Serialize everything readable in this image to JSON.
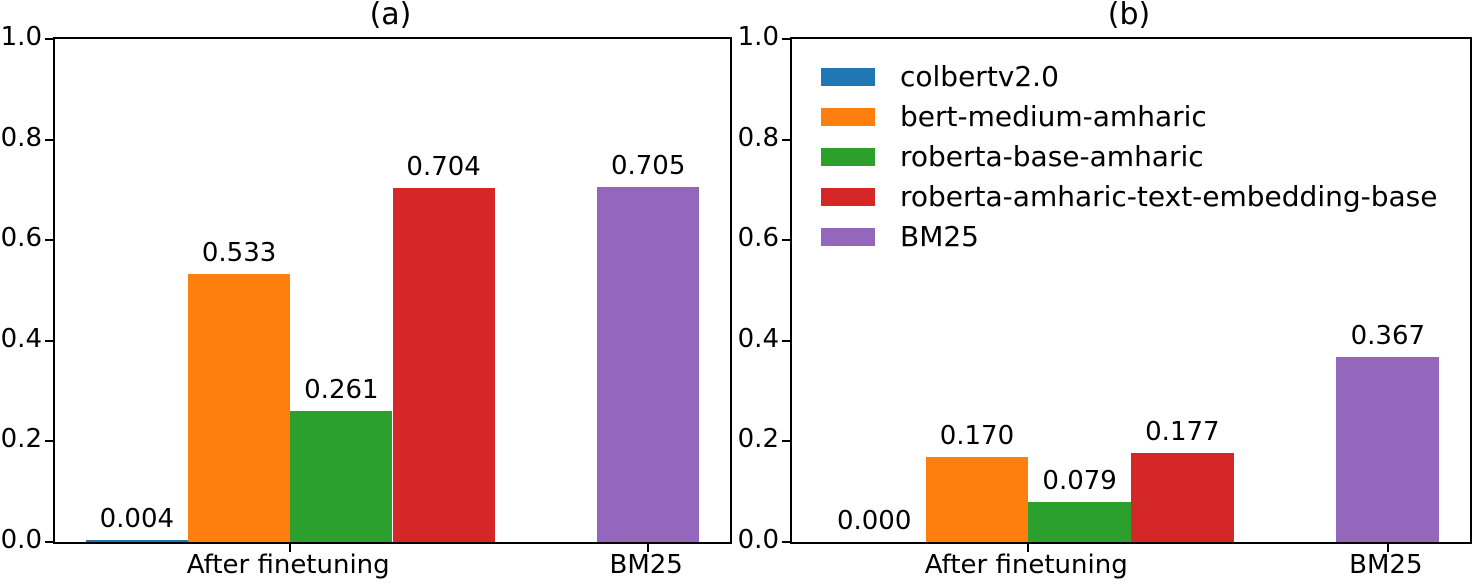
{
  "figure": {
    "background": "#ffffff",
    "axis_color": "#000000",
    "text_color": "#000000"
  },
  "palette": {
    "colbertv2.0": "#1f77b4",
    "bert-medium-amharic": "#ff7f0e",
    "roberta-base-amharic": "#2ca02c",
    "roberta-amharic-text-embedding-base": "#d62728",
    "BM25": "#9467bd"
  },
  "legend": {
    "location": "upper left",
    "shown_on_chart": "(b)",
    "items": [
      {
        "label": "colbertv2.0",
        "color": "#1f77b4"
      },
      {
        "label": "bert-medium-amharic",
        "color": "#ff7f0e"
      },
      {
        "label": "roberta-base-amharic",
        "color": "#2ca02c"
      },
      {
        "label": "roberta-amharic-text-embedding-base",
        "color": "#d62728"
      },
      {
        "label": "BM25",
        "color": "#9467bd"
      }
    ]
  },
  "chart_data": [
    {
      "type": "bar",
      "title": "(a)",
      "xlabel": "",
      "ylabel": "",
      "ylim": [
        0.0,
        1.0
      ],
      "xlim": [
        -0.8,
        5.8
      ],
      "bar_width": 1.0,
      "grid": false,
      "legend": false,
      "categories": [
        "After finetuning",
        "BM25"
      ],
      "series": [
        {
          "name": "colbertv2.0",
          "values": [
            0.004,
            null
          ]
        },
        {
          "name": "bert-medium-amharic",
          "values": [
            0.533,
            null
          ]
        },
        {
          "name": "roberta-base-amharic",
          "values": [
            0.261,
            null
          ]
        },
        {
          "name": "roberta-amharic-text-embedding-base",
          "values": [
            0.704,
            null
          ]
        },
        {
          "name": "BM25",
          "values": [
            null,
            0.705
          ]
        }
      ],
      "yticks": [
        {
          "value": 0.0,
          "label": "0.0"
        },
        {
          "value": 0.2,
          "label": "0.2"
        },
        {
          "value": 0.4,
          "label": "0.4"
        },
        {
          "value": 0.6,
          "label": "0.6"
        },
        {
          "value": 0.8,
          "label": "0.8"
        },
        {
          "value": 1.0,
          "label": "1.0"
        }
      ],
      "xticks": [
        {
          "label": "After finetuning",
          "slot": 1.5
        },
        {
          "label": "BM25",
          "slot": 5.0
        }
      ],
      "bars": [
        {
          "series": "colbertv2.0",
          "category": "After finetuning",
          "slot": 0,
          "value": 0.004,
          "label": "0.004"
        },
        {
          "series": "bert-medium-amharic",
          "category": "After finetuning",
          "slot": 1,
          "value": 0.533,
          "label": "0.533"
        },
        {
          "series": "roberta-base-amharic",
          "category": "After finetuning",
          "slot": 2,
          "value": 0.261,
          "label": "0.261"
        },
        {
          "series": "roberta-amharic-text-embedding-base",
          "category": "After finetuning",
          "slot": 3,
          "value": 0.704,
          "label": "0.704"
        },
        {
          "series": "BM25",
          "category": "BM25",
          "slot": 5,
          "value": 0.705,
          "label": "0.705"
        }
      ]
    },
    {
      "type": "bar",
      "title": "(b)",
      "xlabel": "",
      "ylabel": "",
      "ylim": [
        0.0,
        1.0
      ],
      "xlim": [
        -0.8,
        5.8
      ],
      "bar_width": 1.0,
      "grid": false,
      "legend": true,
      "categories": [
        "After finetuning",
        "BM25"
      ],
      "series": [
        {
          "name": "colbertv2.0",
          "values": [
            0.0,
            null
          ]
        },
        {
          "name": "bert-medium-amharic",
          "values": [
            0.17,
            null
          ]
        },
        {
          "name": "roberta-base-amharic",
          "values": [
            0.079,
            null
          ]
        },
        {
          "name": "roberta-amharic-text-embedding-base",
          "values": [
            0.177,
            null
          ]
        },
        {
          "name": "BM25",
          "values": [
            null,
            0.367
          ]
        }
      ],
      "yticks": [
        {
          "value": 0.0,
          "label": "0.0"
        },
        {
          "value": 0.2,
          "label": "0.2"
        },
        {
          "value": 0.4,
          "label": "0.4"
        },
        {
          "value": 0.6,
          "label": "0.6"
        },
        {
          "value": 0.8,
          "label": "0.8"
        },
        {
          "value": 1.0,
          "label": "1.0"
        }
      ],
      "xticks": [
        {
          "label": "After finetuning",
          "slot": 1.5
        },
        {
          "label": "BM25",
          "slot": 5.0
        }
      ],
      "bars": [
        {
          "series": "colbertv2.0",
          "category": "After finetuning",
          "slot": 0,
          "value": 0.0,
          "label": "0.000"
        },
        {
          "series": "bert-medium-amharic",
          "category": "After finetuning",
          "slot": 1,
          "value": 0.17,
          "label": "0.170"
        },
        {
          "series": "roberta-base-amharic",
          "category": "After finetuning",
          "slot": 2,
          "value": 0.079,
          "label": "0.079"
        },
        {
          "series": "roberta-amharic-text-embedding-base",
          "category": "After finetuning",
          "slot": 3,
          "value": 0.177,
          "label": "0.177"
        },
        {
          "series": "BM25",
          "category": "BM25",
          "slot": 5,
          "value": 0.367,
          "label": "0.367"
        }
      ]
    }
  ]
}
